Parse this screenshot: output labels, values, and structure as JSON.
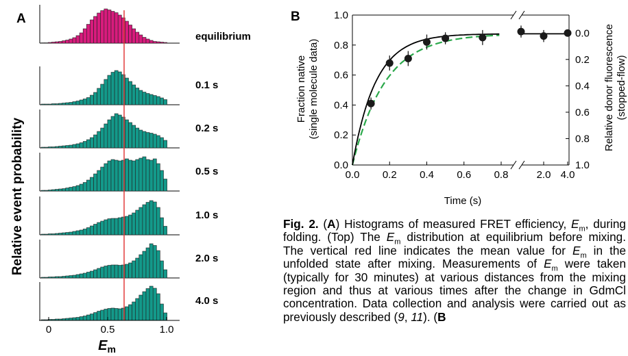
{
  "panelA": {
    "label": "A",
    "ylabel": "Relative event probability",
    "xlabel_main": "E",
    "xlabel_sub": "m",
    "xticks": [
      "0",
      "0.5",
      "1.0"
    ],
    "colors": {
      "equilibrium": "#d81b7d",
      "folding": "#13998a",
      "redline": "#e23b3b"
    },
    "histograms": [
      {
        "label": "equilibrium",
        "values": [
          0.01,
          0.01,
          0.02,
          0.03,
          0.04,
          0.05,
          0.07,
          0.09,
          0.12,
          0.16,
          0.22,
          0.3,
          0.42,
          0.55,
          0.68,
          0.78,
          0.88,
          0.95,
          1.0,
          0.97,
          0.93,
          0.89,
          0.82,
          0.74,
          0.64,
          0.53,
          0.42,
          0.32,
          0.24,
          0.17,
          0.12,
          0.08,
          0.05,
          0.04,
          0.03,
          0.02
        ]
      },
      {
        "label": "0.1 s",
        "values": [
          0.02,
          0.02,
          0.02,
          0.03,
          0.03,
          0.04,
          0.05,
          0.06,
          0.07,
          0.09,
          0.11,
          0.14,
          0.17,
          0.21,
          0.28,
          0.36,
          0.48,
          0.6,
          0.74,
          0.86,
          0.95,
          1.0,
          0.96,
          0.88,
          0.78,
          0.68,
          0.58,
          0.49,
          0.42,
          0.37,
          0.33,
          0.3,
          0.27,
          0.24,
          0.2,
          0.15
        ]
      },
      {
        "label": "0.2 s",
        "values": [
          0.02,
          0.02,
          0.03,
          0.03,
          0.04,
          0.05,
          0.06,
          0.07,
          0.08,
          0.1,
          0.12,
          0.15,
          0.19,
          0.24,
          0.3,
          0.38,
          0.48,
          0.58,
          0.7,
          0.82,
          0.92,
          1.0,
          0.96,
          0.9,
          0.82,
          0.74,
          0.66,
          0.58,
          0.52,
          0.48,
          0.45,
          0.43,
          0.4,
          0.36,
          0.3,
          0.22
        ]
      },
      {
        "label": "0.5 s",
        "values": [
          0.02,
          0.02,
          0.03,
          0.04,
          0.05,
          0.06,
          0.07,
          0.09,
          0.11,
          0.13,
          0.16,
          0.2,
          0.25,
          0.32,
          0.4,
          0.5,
          0.6,
          0.7,
          0.8,
          0.88,
          0.92,
          0.9,
          0.88,
          0.9,
          0.94,
          0.9,
          0.88,
          0.92,
          0.96,
          1.0,
          0.92,
          0.9,
          0.94,
          0.8,
          0.6,
          0.35
        ]
      },
      {
        "label": "1.0 s",
        "values": [
          0.02,
          0.02,
          0.03,
          0.03,
          0.04,
          0.05,
          0.06,
          0.07,
          0.08,
          0.1,
          0.12,
          0.14,
          0.17,
          0.21,
          0.26,
          0.31,
          0.36,
          0.4,
          0.44,
          0.47,
          0.48,
          0.48,
          0.5,
          0.52,
          0.54,
          0.58,
          0.64,
          0.72,
          0.8,
          0.88,
          0.95,
          1.0,
          0.96,
          0.8,
          0.5,
          0.25
        ]
      },
      {
        "label": "2.0 s",
        "values": [
          0.02,
          0.02,
          0.03,
          0.03,
          0.04,
          0.04,
          0.05,
          0.06,
          0.07,
          0.08,
          0.1,
          0.12,
          0.14,
          0.17,
          0.2,
          0.24,
          0.28,
          0.32,
          0.35,
          0.37,
          0.38,
          0.38,
          0.37,
          0.38,
          0.4,
          0.44,
          0.5,
          0.58,
          0.68,
          0.78,
          0.88,
          1.0,
          0.95,
          0.8,
          0.5,
          0.24
        ]
      },
      {
        "label": "4.0 s",
        "values": [
          0.02,
          0.02,
          0.03,
          0.03,
          0.04,
          0.04,
          0.05,
          0.06,
          0.07,
          0.08,
          0.09,
          0.11,
          0.13,
          0.16,
          0.19,
          0.23,
          0.27,
          0.3,
          0.33,
          0.35,
          0.36,
          0.35,
          0.34,
          0.36,
          0.4,
          0.46,
          0.54,
          0.64,
          0.74,
          0.84,
          0.93,
          1.0,
          0.94,
          0.78,
          0.48,
          0.22
        ]
      }
    ]
  },
  "panelB": {
    "label": "B",
    "ylabel_line1": "Fraction native",
    "ylabel_line2": "(single molecule data)",
    "y2label_line1": "Relative donor fluorescence",
    "y2label_line2": "(stopped-flow)",
    "xlabel": "Time (s)",
    "yticks": [
      "0.0",
      "0.2",
      "0.4",
      "0.6",
      "0.8",
      "1.0"
    ],
    "y2ticks": [
      "0.0",
      "0.2",
      "0.4",
      "0.6",
      "0.8",
      "1.0"
    ],
    "xticks": [
      "0.0",
      "0.2",
      "0.4",
      "0.6",
      "0.8",
      "2.0",
      "4.0"
    ],
    "colors": {
      "fit": "#000000",
      "stopped_flow": "#2aa84a",
      "points": "#1a1a1a"
    }
  },
  "chart_data": {
    "type": "scatter",
    "xlabel": "Time (s)",
    "ylabel": "Fraction native (single molecule data)",
    "y2label": "Relative donor fluorescence (stopped-flow)",
    "ylim": [
      0,
      1.0
    ],
    "xlim": [
      0,
      4.0
    ],
    "series": [
      {
        "x": [
          0.1,
          0.2,
          0.3,
          0.4,
          0.5,
          0.7,
          1.0,
          2.0,
          4.0
        ],
        "y": [
          0.41,
          0.68,
          0.71,
          0.82,
          0.845,
          0.85,
          0.89,
          0.86,
          0.88
        ],
        "err": [
          0.04,
          0.05,
          0.05,
          0.05,
          0.04,
          0.05,
          0.04,
          0.04,
          0.02
        ]
      }
    ]
  },
  "caption": {
    "fig": "Fig. 2.",
    "A": "A",
    "B": "B",
    "t1": " Histograms of measured FRET efficiency, ",
    "E": "E",
    "m": "m",
    "t2": ", during folding. (Top) The ",
    "t3": " distribution at equilibrium before mixing. The vertical red line indicates the mean value for ",
    "t4": " in the unfolded state after mixing. Measurements of ",
    "t5": " were taken (typically for 30 minutes) at various distances from the mixing region and thus at various times after the change in GdmCl concentration. Data collection and analysis were carried out as previously described (",
    "ref1": "9",
    "t6": ", ",
    "ref2": "11",
    "t7": "). ("
  }
}
